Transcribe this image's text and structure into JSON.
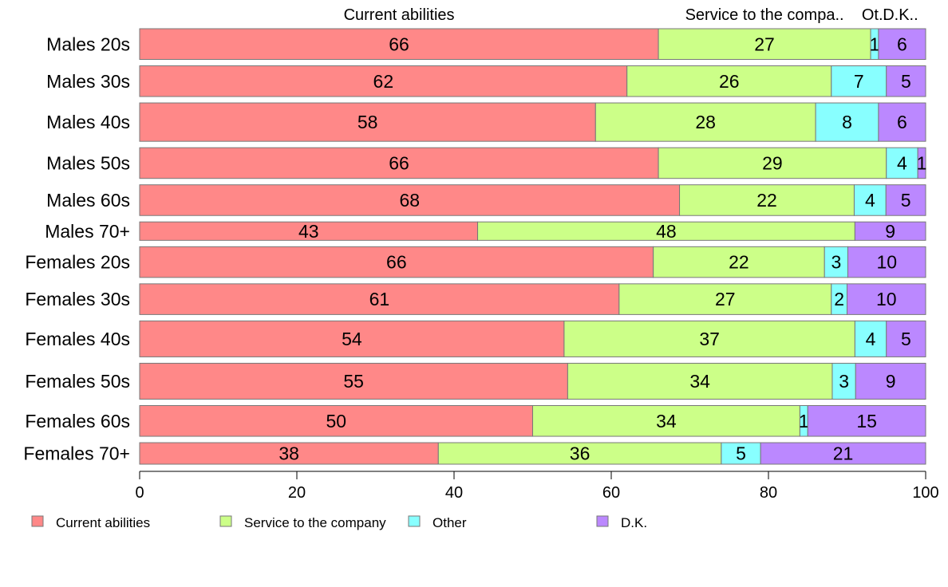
{
  "chart_data": {
    "type": "bar",
    "orientation": "horizontal",
    "stacked": true,
    "percent": true,
    "column_headers": [
      "Current abilities",
      "Service to the compa..",
      "Ot..",
      "D.K.."
    ],
    "categories": [
      "Males 20s",
      "Males 30s",
      "Males 40s",
      "Males 50s",
      "Males 60s",
      "Males 70+",
      "Females 20s",
      "Females 30s",
      "Females 40s",
      "Females 50s",
      "Females 60s",
      "Females 70+"
    ],
    "series": [
      {
        "name": "Current abilities",
        "color": "#ff8888",
        "values": [
          66,
          62,
          58,
          66,
          68,
          43,
          66,
          61,
          54,
          55,
          50,
          38
        ]
      },
      {
        "name": "Service to the company",
        "color": "#ccff88",
        "values": [
          27,
          26,
          28,
          29,
          22,
          48,
          22,
          27,
          37,
          34,
          34,
          36
        ]
      },
      {
        "name": "Other",
        "color": "#88ffff",
        "values": [
          1,
          7,
          8,
          4,
          4,
          0,
          3,
          2,
          4,
          3,
          1,
          5
        ]
      },
      {
        "name": "D.K.",
        "color": "#bb88ff",
        "values": [
          6,
          5,
          6,
          1,
          5,
          9,
          10,
          10,
          5,
          9,
          15,
          21
        ]
      }
    ],
    "row_weights": [
      1,
      1,
      1.25,
      1,
      1,
      0.6,
      1,
      1,
      1.17,
      1.17,
      1,
      0.7
    ],
    "xlim": [
      0,
      100
    ],
    "xticks": [
      0,
      20,
      40,
      60,
      80,
      100
    ],
    "legend_position": "bottom",
    "grid": false
  }
}
